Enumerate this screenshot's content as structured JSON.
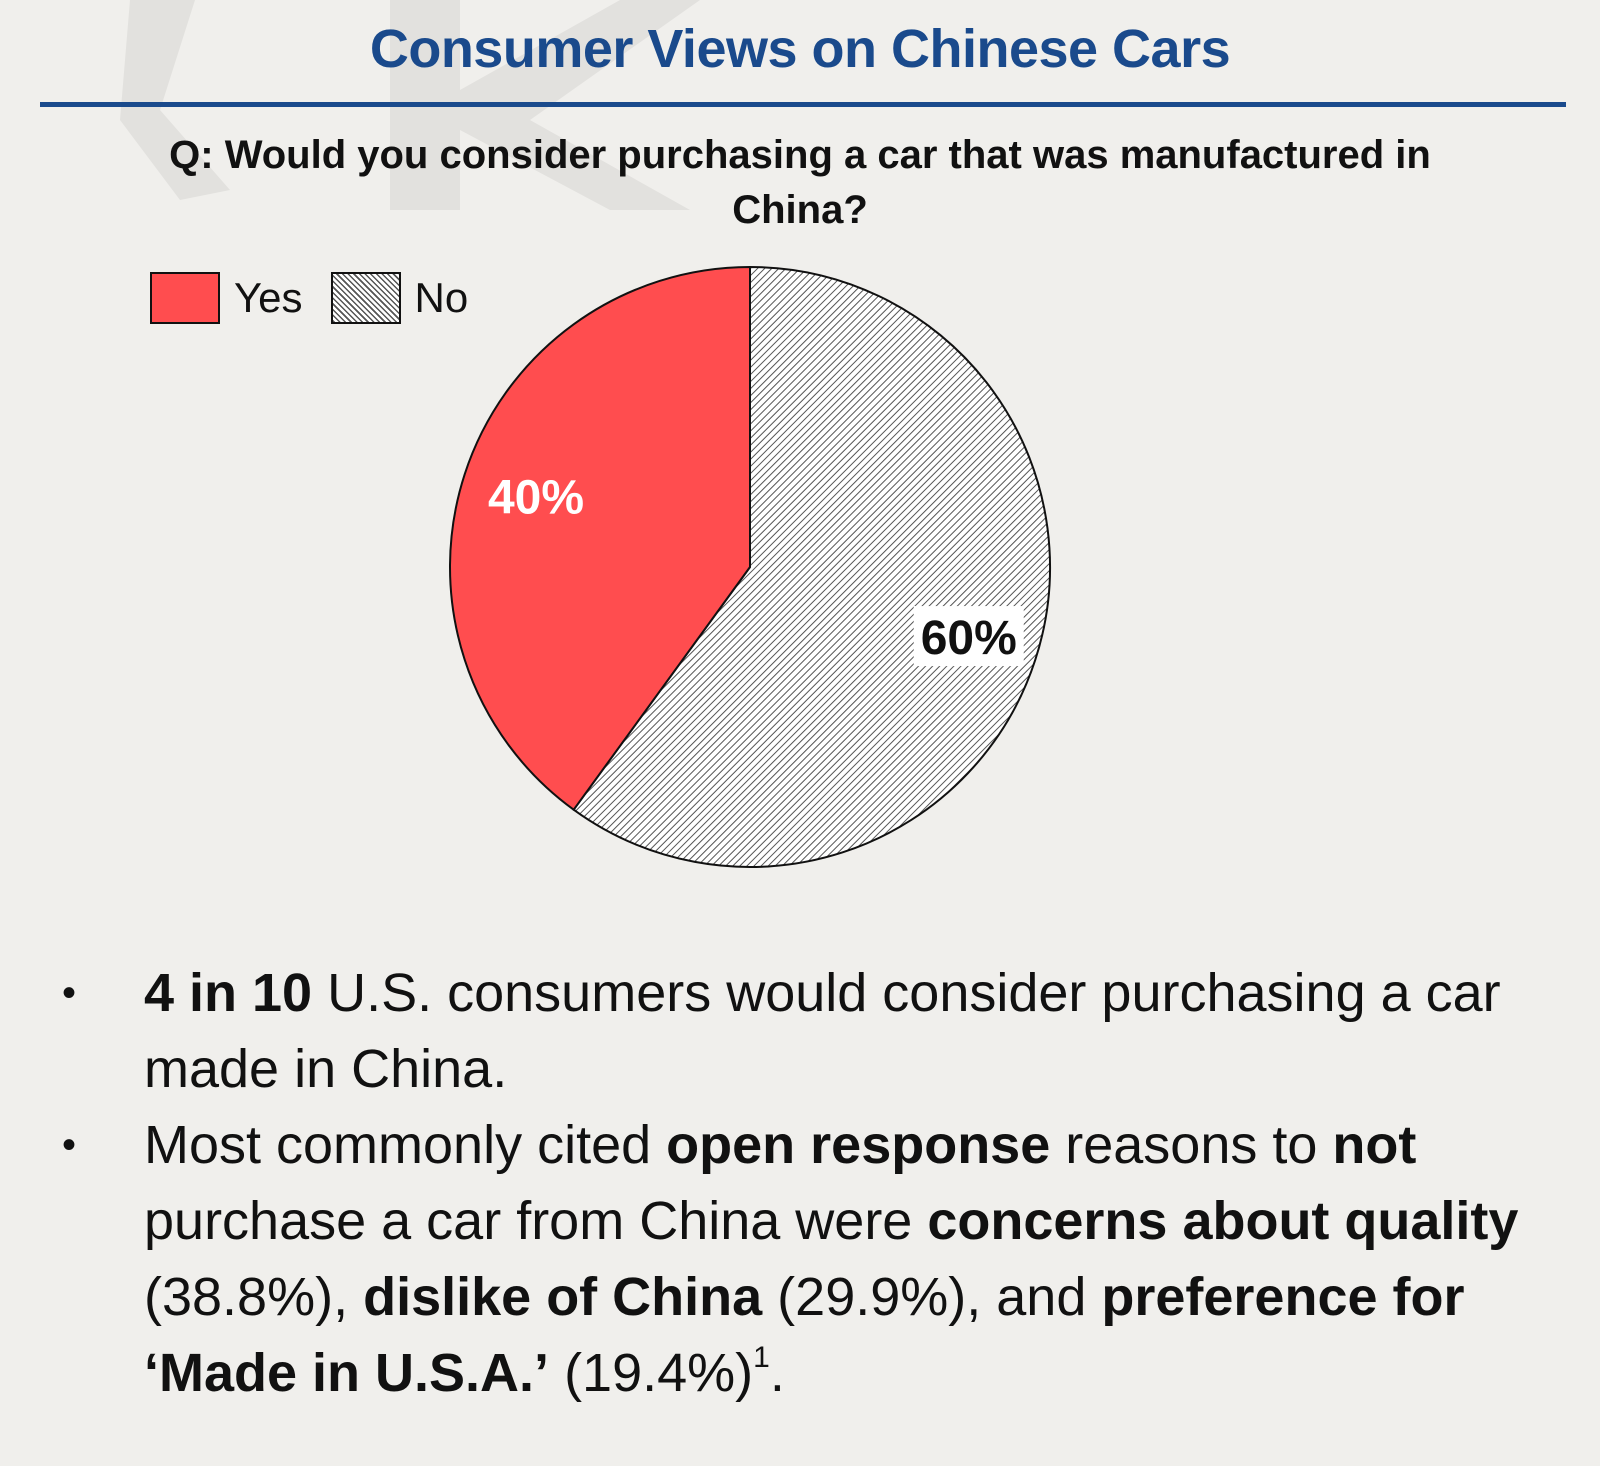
{
  "title": "Consumer Views on Chinese Cars",
  "question": "Q: Would you consider purchasing a car that was manufactured in China?",
  "chart_data": {
    "type": "pie",
    "title": "",
    "legend_position": "top-left",
    "slices": [
      {
        "label": "Yes",
        "value": 40,
        "display": "40%",
        "color": "#ff4d4f"
      },
      {
        "label": "No",
        "value": 60,
        "display": "60%",
        "color": "hatched-gray"
      }
    ]
  },
  "bullets": {
    "b1": {
      "p1": "4 in 10",
      "p2": " U.S. consumers would consider purchasing a car made in China."
    },
    "b2": {
      "p1": "Most commonly cited ",
      "p2": "open response",
      "p3": " reasons to ",
      "p4": "not",
      "p5": " purchase a car from China were ",
      "p6": "concerns about quality",
      "p7": " (38.8%), ",
      "p8": "dislike of China",
      "p9": " (29.9%), and ",
      "p10": "preference for ‘Made in U.S.A.’",
      "p11": " (19.4%)",
      "p12": "1",
      "p13": "."
    },
    "dot": "•"
  },
  "colors": {
    "title": "#1a4a8c",
    "background": "#f0efec"
  }
}
